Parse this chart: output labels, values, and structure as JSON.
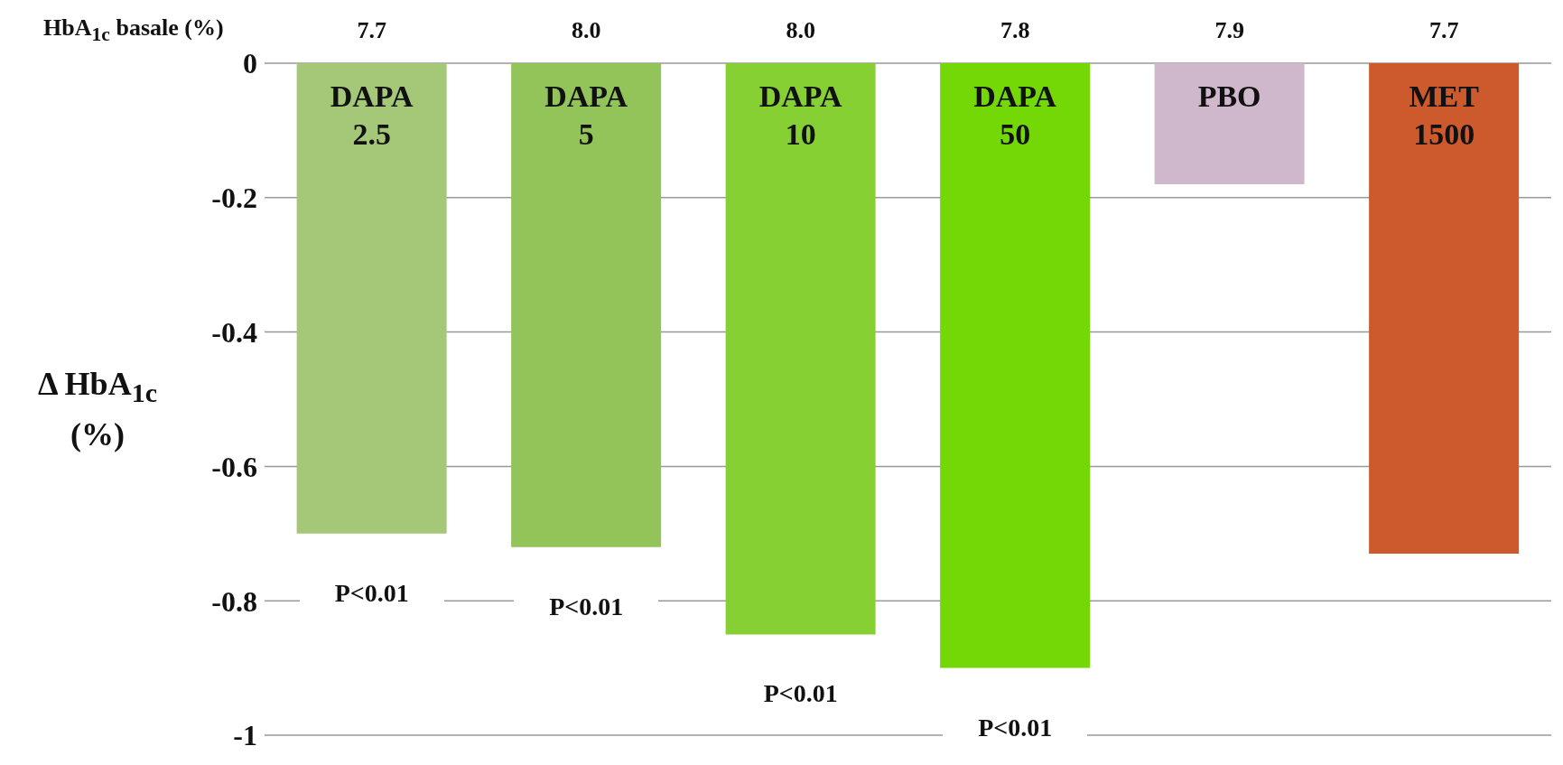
{
  "chart_data": {
    "type": "bar",
    "ylabel": "Δ HbA$_{1c}$ (%)",
    "categories": [
      "DAPA 2.5",
      "DAPA 5",
      "DAPA 10",
      "DAPA 50",
      "PBO",
      "MET 1500"
    ],
    "values": [
      -0.7,
      -0.72,
      -0.85,
      -0.9,
      -0.18,
      -0.73
    ],
    "colors": [
      "#a4c878",
      "#92c45a",
      "#86d034",
      "#74d806",
      "#d0b8cc",
      "#cc5a2c"
    ],
    "ylim": [
      -1,
      0
    ],
    "yticks": [
      0,
      -0.2,
      -0.4,
      -0.6,
      -0.8,
      -1
    ],
    "grid": "y",
    "legend": false,
    "annotations": [
      "HbA$_{1c}$ basale (%)",
      "7.7",
      "8.0",
      "8.0",
      "7.8",
      "7.9",
      "7.7",
      "P<0.01",
      "P<0.01",
      "P<0.01",
      "P<0.01"
    ]
  }
}
